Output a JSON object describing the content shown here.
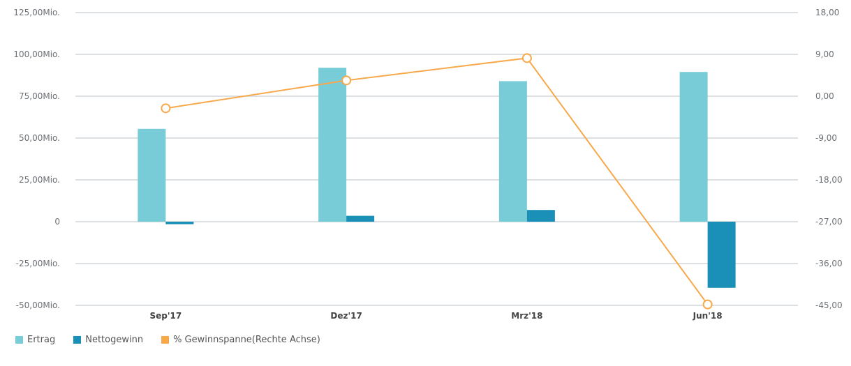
{
  "colors": {
    "ertrag": "#78CCD8",
    "nettogewinn": "#1A8FB8",
    "gewinnspanne": "#F7A84A",
    "grid": "#D0D5DA",
    "axis_text": "#6b7075",
    "category_text": "#444444"
  },
  "chart_data": {
    "type": "bar",
    "categories": [
      "Sep'17",
      "Dez'17",
      "Mrz'18",
      "Jun'18"
    ],
    "series": [
      {
        "name": "Ertrag",
        "type": "bar",
        "axis": "left",
        "values": [
          55.5,
          92.0,
          84.0,
          89.5
        ]
      },
      {
        "name": "Nettogewinn",
        "type": "bar",
        "axis": "left",
        "values": [
          -1.5,
          3.5,
          7.0,
          -39.5
        ]
      },
      {
        "name": "% Gewinnspanne(Rechte Achse)",
        "type": "line",
        "axis": "right",
        "values": [
          -2.6,
          3.4,
          8.2,
          -44.8
        ]
      }
    ],
    "left_axis": {
      "ylim": [
        -50,
        125
      ],
      "ticks": [
        125,
        100,
        75,
        50,
        25,
        0,
        -25,
        -50
      ],
      "tick_labels": [
        "125,00Mio.",
        "100,00Mio.",
        "75,00Mio.",
        "50,00Mio.",
        "25,00Mio.",
        "0",
        "-25,00Mio.",
        "-50,00Mio."
      ]
    },
    "right_axis": {
      "ylim": [
        -45,
        18
      ],
      "ticks": [
        18,
        9,
        0,
        -9,
        -18,
        -27,
        -36,
        -45
      ],
      "tick_labels": [
        "18,00",
        "9,00",
        "0,00",
        "-9,00",
        "-18,00",
        "-27,00",
        "-36,00",
        "-45,00"
      ]
    },
    "grid": true,
    "legend_position": "bottom-left"
  }
}
